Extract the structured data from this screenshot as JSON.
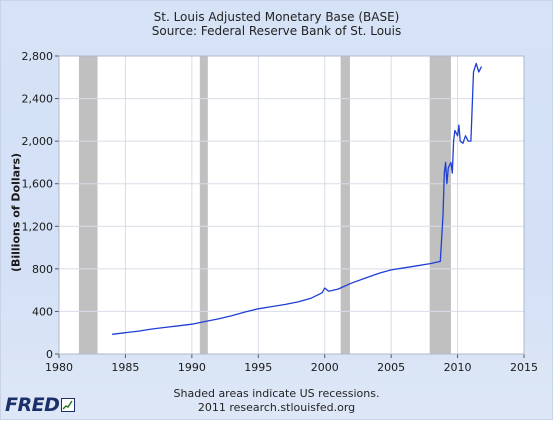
{
  "chart_data": {
    "type": "line",
    "title": "St. Louis Adjusted Monetary Base (BASE)",
    "subtitle": "Source: Federal Reserve Bank of St. Louis",
    "ylabel": "(Billions of Dollars)",
    "xlabel": "",
    "xlim": [
      1980,
      2015
    ],
    "ylim": [
      0,
      2800
    ],
    "x_ticks": [
      "1980",
      "1985",
      "1990",
      "1995",
      "2000",
      "2005",
      "2010",
      "2015"
    ],
    "y_ticks": [
      "0",
      "400",
      "800",
      "1,200",
      "1,600",
      "2,000",
      "2,400",
      "2,800"
    ],
    "grid": true,
    "recessions": [
      [
        1981.5,
        1982.9
      ],
      [
        1990.6,
        1991.2
      ],
      [
        2001.2,
        2001.9
      ],
      [
        2007.9,
        2009.5
      ]
    ],
    "series": [
      {
        "color": "#1f3fd6",
        "x": [
          1984.0,
          1985.0,
          1986.0,
          1987.0,
          1988.0,
          1989.0,
          1990.0,
          1991.0,
          1992.0,
          1993.0,
          1994.0,
          1995.0,
          1996.0,
          1997.0,
          1998.0,
          1999.0,
          1999.8,
          2000.0,
          2000.3,
          2001.0,
          2002.0,
          2003.0,
          2004.0,
          2005.0,
          2006.0,
          2007.0,
          2008.0,
          2008.7,
          2008.9,
          2009.0,
          2009.1,
          2009.2,
          2009.3,
          2009.5,
          2009.6,
          2009.7,
          2009.8,
          2010.0,
          2010.1,
          2010.2,
          2010.4,
          2010.6,
          2010.8,
          2011.0,
          2011.2,
          2011.4,
          2011.6,
          2011.8
        ],
        "values": [
          185,
          200,
          215,
          235,
          250,
          265,
          280,
          305,
          330,
          360,
          395,
          425,
          445,
          465,
          490,
          525,
          575,
          620,
          590,
          610,
          665,
          710,
          755,
          790,
          810,
          830,
          850,
          870,
          1300,
          1700,
          1800,
          1600,
          1750,
          1800,
          1700,
          2000,
          2100,
          2050,
          2150,
          2000,
          1980,
          2050,
          2000,
          2000,
          2650,
          2730,
          2650,
          2700
        ]
      }
    ]
  },
  "footer": {
    "note_line1": "Shaded areas indicate US recessions.",
    "note_line2": "2011 research.stlouisfed.org",
    "logo_text": "FRED"
  },
  "colors": {
    "background": "#d6e3f7",
    "plot_bg": "#ffffff",
    "recession": "#c0c0c0",
    "line": "#1f3fd6"
  }
}
